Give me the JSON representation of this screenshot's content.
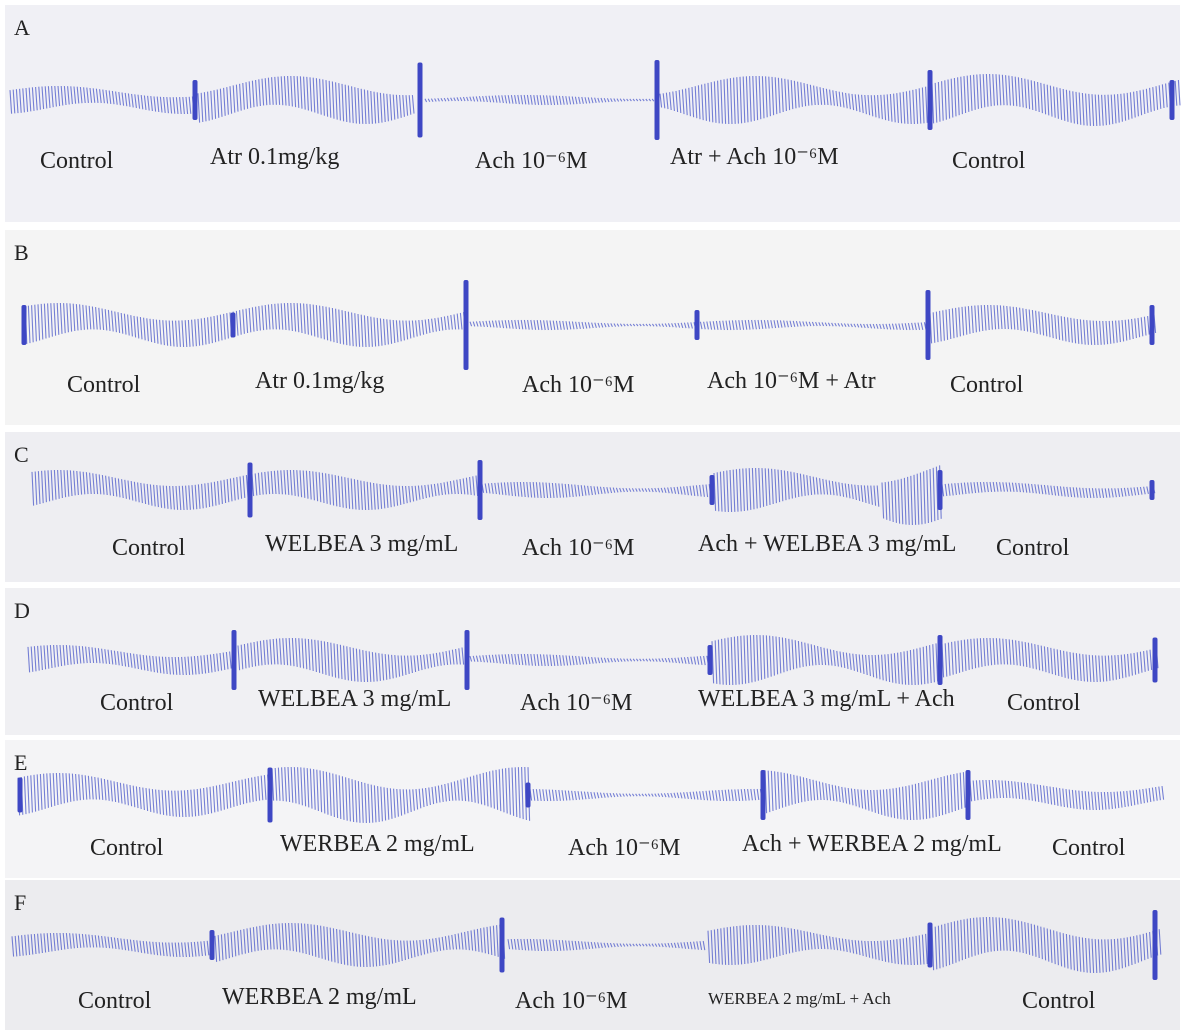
{
  "panels": [
    {
      "letter": "A",
      "labels": [
        "Control",
        "Atr 0.1mg/kg",
        "Ach 10⁻⁶M",
        "Atr + Ach 10⁻⁶M",
        "Control"
      ]
    },
    {
      "letter": "B",
      "labels": [
        "Control",
        "Atr 0.1mg/kg",
        "Ach 10⁻⁶M",
        "Ach 10⁻⁶M + Atr",
        "Control"
      ]
    },
    {
      "letter": "C",
      "labels": [
        "Control",
        "WELBEA 3 mg/mL",
        "Ach 10⁻⁶M",
        "Ach + WELBEA 3 mg/mL",
        "Control"
      ]
    },
    {
      "letter": "D",
      "labels": [
        "Control",
        "WELBEA 3 mg/mL",
        "Ach 10⁻⁶M",
        "WELBEA 3 mg/mL + Ach",
        "Control"
      ]
    },
    {
      "letter": "E",
      "labels": [
        "Control",
        "WERBEA 2 mg/mL",
        "Ach 10⁻⁶M",
        "Ach + WERBEA 2 mg/mL",
        "Control"
      ]
    },
    {
      "letter": "F",
      "labels": [
        "Control",
        "WERBEA 2 mg/mL",
        "Ach 10⁻⁶M",
        "WERBEA 2 mg/mL + Ach",
        "Control"
      ]
    }
  ]
}
